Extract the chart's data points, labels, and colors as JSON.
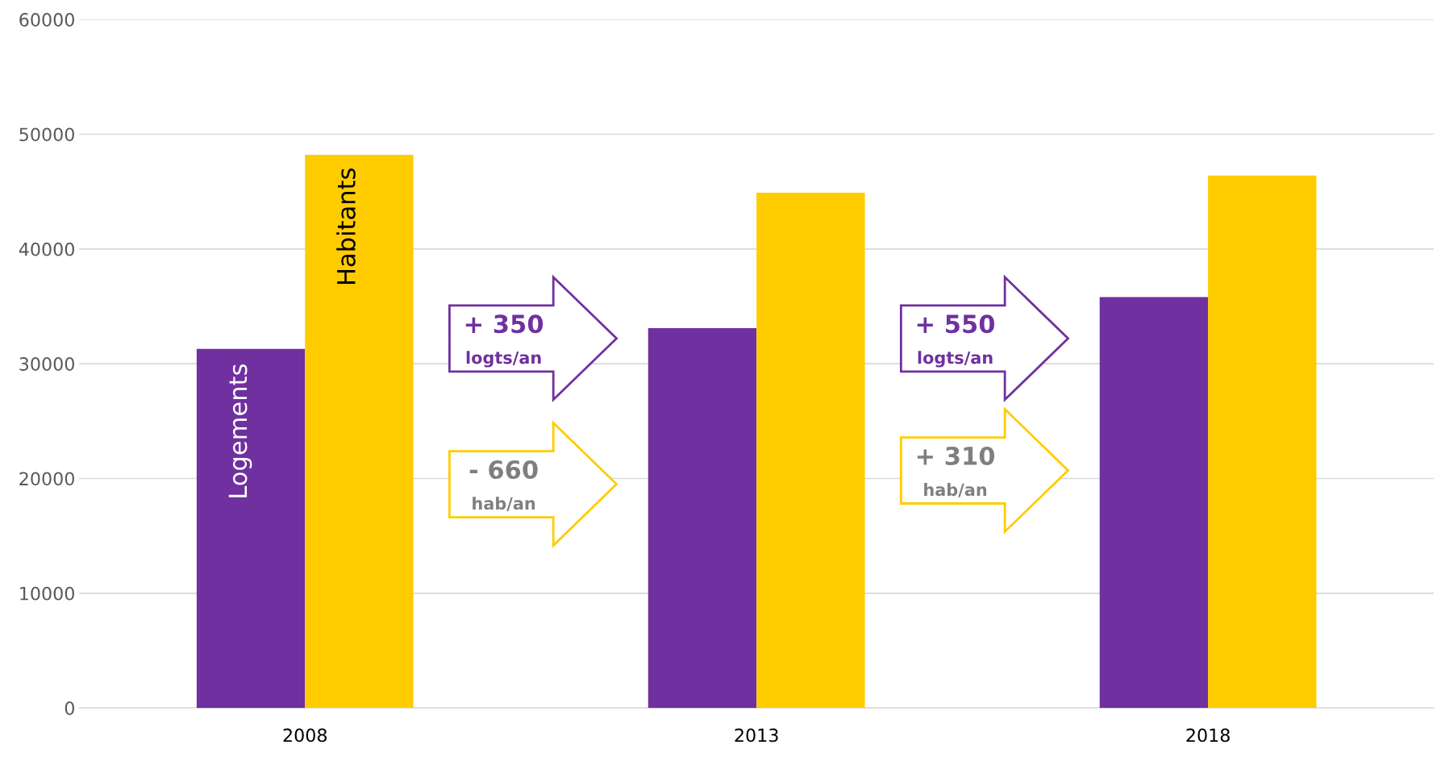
{
  "chart_data": {
    "type": "bar",
    "categories": [
      "2008",
      "2013",
      "2018"
    ],
    "series": [
      {
        "name": "Logements",
        "color": "#7030a0",
        "values": [
          31300,
          33100,
          35800
        ]
      },
      {
        "name": "Habitants",
        "color": "#ffcc00",
        "values": [
          48200,
          44900,
          46400
        ]
      }
    ],
    "ylim": [
      0,
      60000
    ],
    "yticks": [
      0,
      10000,
      20000,
      30000,
      40000,
      50000,
      60000
    ],
    "grid": "y",
    "legend": false,
    "annotations": [
      "+ 350\nlogts/an",
      "- 660\nhab/an",
      "+ 550\nlogts/an",
      "+ 310\nhab/an"
    ]
  }
}
